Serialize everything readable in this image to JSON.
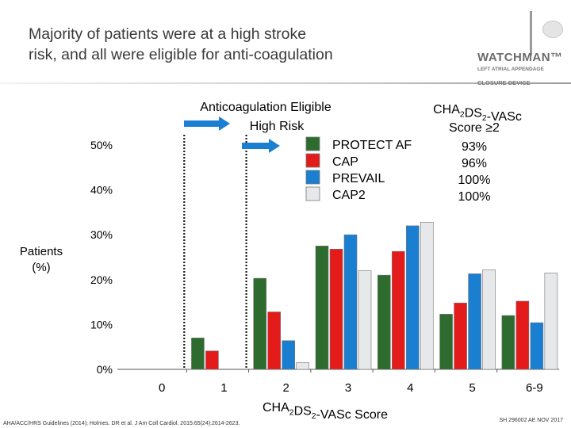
{
  "slide": {
    "title_line1": "Majority of patients were at a high stroke",
    "title_line2": "risk, and all were eligible for anti-coagulation",
    "logo_name": "WATCHMAN™",
    "logo_tag1": "LEFT ATRIAL APPENDAGE",
    "logo_tag2": "CLOSURE DEVICE",
    "footnote": "AHA/ACC/HRS Guidelines (2014); Holmes. DR et al. J Am Coll Cardiol. 2015:65(24):2614-2623.",
    "code": "SH 296002 AE NOV 2017"
  },
  "chart_data": {
    "type": "bar",
    "categories": [
      "0",
      "1",
      "2",
      "3",
      "4",
      "5",
      "6-9"
    ],
    "series": [
      {
        "name": "PROTECT AF",
        "color": "#2e6b2e",
        "values": [
          0,
          7,
          20.3,
          27.5,
          21,
          12.3,
          12
        ]
      },
      {
        "name": "CAP",
        "color": "#e41b1b",
        "values": [
          0,
          4.1,
          12.8,
          26.8,
          26.3,
          14.8,
          15.2
        ]
      },
      {
        "name": "PREVAIL",
        "color": "#1a7fd1",
        "values": [
          0,
          0,
          6.4,
          30,
          32,
          21.3,
          10.4
        ]
      },
      {
        "name": "CAP2",
        "color": "#e6e8ea",
        "values": [
          0,
          0,
          1.5,
          22,
          32.8,
          22.2,
          21.5
        ]
      }
    ],
    "ylim": [
      0,
      50
    ],
    "yticks": [
      "0%",
      "10%",
      "20%",
      "30%",
      "40%",
      "50%"
    ],
    "ylabel_line1": "Patients",
    "ylabel_line2": "(%)",
    "xlabel": "CHA2DS2-VASc Score",
    "legend_position": "top-center",
    "grid": false,
    "annotation": {
      "eligible_label": "Anticoagulation Eligible",
      "high_risk_label": "High Risk"
    },
    "score_box": {
      "title_line1": "CHA2DS2-VASc",
      "title_line2": "Score ≥2",
      "values": [
        "93%",
        "96%",
        "100%",
        "100%"
      ]
    }
  }
}
